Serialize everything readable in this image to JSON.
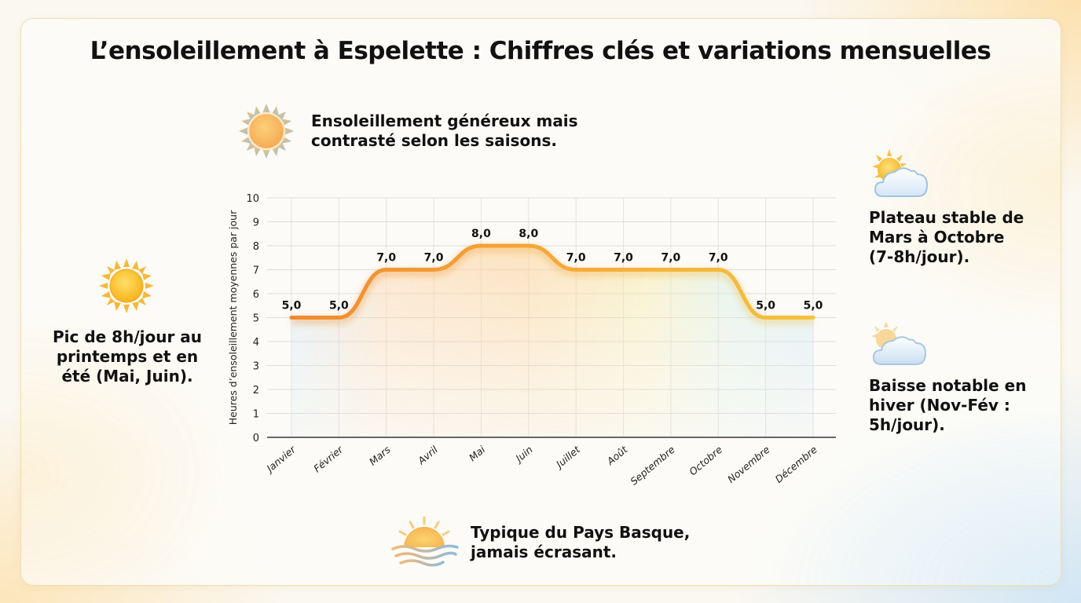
{
  "title": "L’ensoleillement à Espelette : Chiffres clés et variations mensuelles",
  "notes": {
    "top": {
      "icon": "sun-icon",
      "lines": [
        "Ensoleillement généreux mais",
        "contrasté selon les saisons."
      ]
    },
    "left": {
      "icon": "sun-icon",
      "lines": [
        "Pic de 8h/jour au",
        "printemps et en",
        "été (Mai, Juin)."
      ]
    },
    "right_top": {
      "icon": "sun-behind-cloud-icon",
      "lines": [
        "Plateau stable de",
        "Mars à Octobre",
        "(7-8h/jour)."
      ]
    },
    "right_bottom": {
      "icon": "cloud-with-faint-sun-icon",
      "lines": [
        "Baisse notable en",
        "hiver (Nov-Fév :",
        "5h/jour)."
      ]
    },
    "bottom": {
      "icon": "sunset-over-waves-icon",
      "lines": [
        "Typique du Pays Basque,",
        "jamais écrasant."
      ]
    }
  },
  "colors": {
    "line_start": "#F08A2E",
    "line_mid": "#F5A83A",
    "line_end": "#F4C23E",
    "fill_warm": "#FAD9A8",
    "fill_cool": "#D6E9F5",
    "grid": "#DDDDDD",
    "axis": "#666666",
    "text": "#111111"
  },
  "chart_data": {
    "type": "area",
    "title": "",
    "xlabel": "",
    "ylabel": "Heures d’ensoleillement moyennes par jour",
    "categories": [
      "Janvier",
      "Février",
      "Mars",
      "Avril",
      "Mai",
      "Juin",
      "Juillet",
      "Août",
      "Septembre",
      "Octobre",
      "Novembre",
      "Décembre"
    ],
    "values": [
      5.0,
      5.0,
      7.0,
      7.0,
      8.0,
      8.0,
      7.0,
      7.0,
      7.0,
      7.0,
      5.0,
      5.0
    ],
    "value_labels": [
      "5,0",
      "5,0",
      "7,0",
      "7,0",
      "8,0",
      "8,0",
      "7,0",
      "7,0",
      "7,0",
      "7,0",
      "5,0",
      "5,0"
    ],
    "ylim": [
      0,
      10
    ],
    "yticks": [
      0,
      1,
      2,
      3,
      4,
      5,
      6,
      7,
      8,
      9,
      10
    ],
    "grid": true,
    "legend": null,
    "smooth_line": true
  }
}
